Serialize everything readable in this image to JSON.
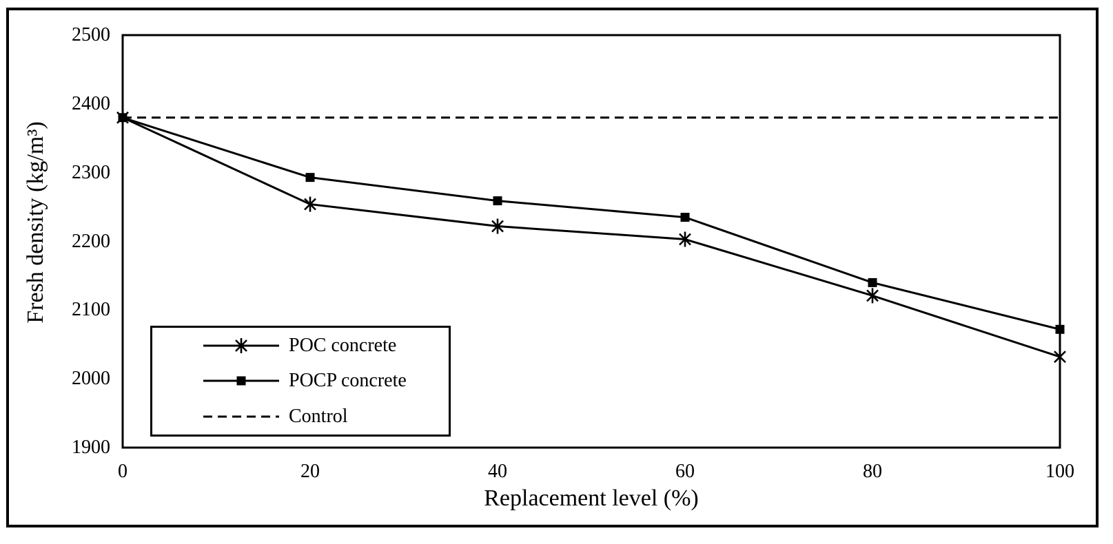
{
  "figure": {
    "background_color": "#ffffff",
    "border_color": "#000000",
    "ink_color": "#000000"
  },
  "chart_data": {
    "type": "line",
    "title": "",
    "xlabel": "Replacement level (%)",
    "ylabel": "Fresh density (kg/m³)",
    "x": [
      0,
      20,
      40,
      60,
      80,
      100
    ],
    "xticks": [
      "0",
      "20",
      "40",
      "60",
      "80",
      "100"
    ],
    "yticks": [
      "2500",
      "2400",
      "2300",
      "2200",
      "2100",
      "2000",
      "1900"
    ],
    "xlim": [
      0,
      100
    ],
    "ylim": [
      1900,
      2500
    ],
    "grid": false,
    "legend_position": "inside-bottom-left",
    "series": [
      {
        "name": "POC concrete",
        "marker": "asterisk",
        "line": "solid",
        "color": "#000000",
        "values": [
          2380,
          2254,
          2222,
          2203,
          2121,
          2032
        ]
      },
      {
        "name": "POCP concrete",
        "marker": "square",
        "line": "solid",
        "color": "#000000",
        "values": [
          2380,
          2293,
          2259,
          2235,
          2140,
          2072
        ]
      },
      {
        "name": "Control",
        "marker": "none",
        "line": "dashed",
        "color": "#000000",
        "values": [
          2380,
          2380,
          2380,
          2380,
          2380,
          2380
        ]
      }
    ]
  }
}
